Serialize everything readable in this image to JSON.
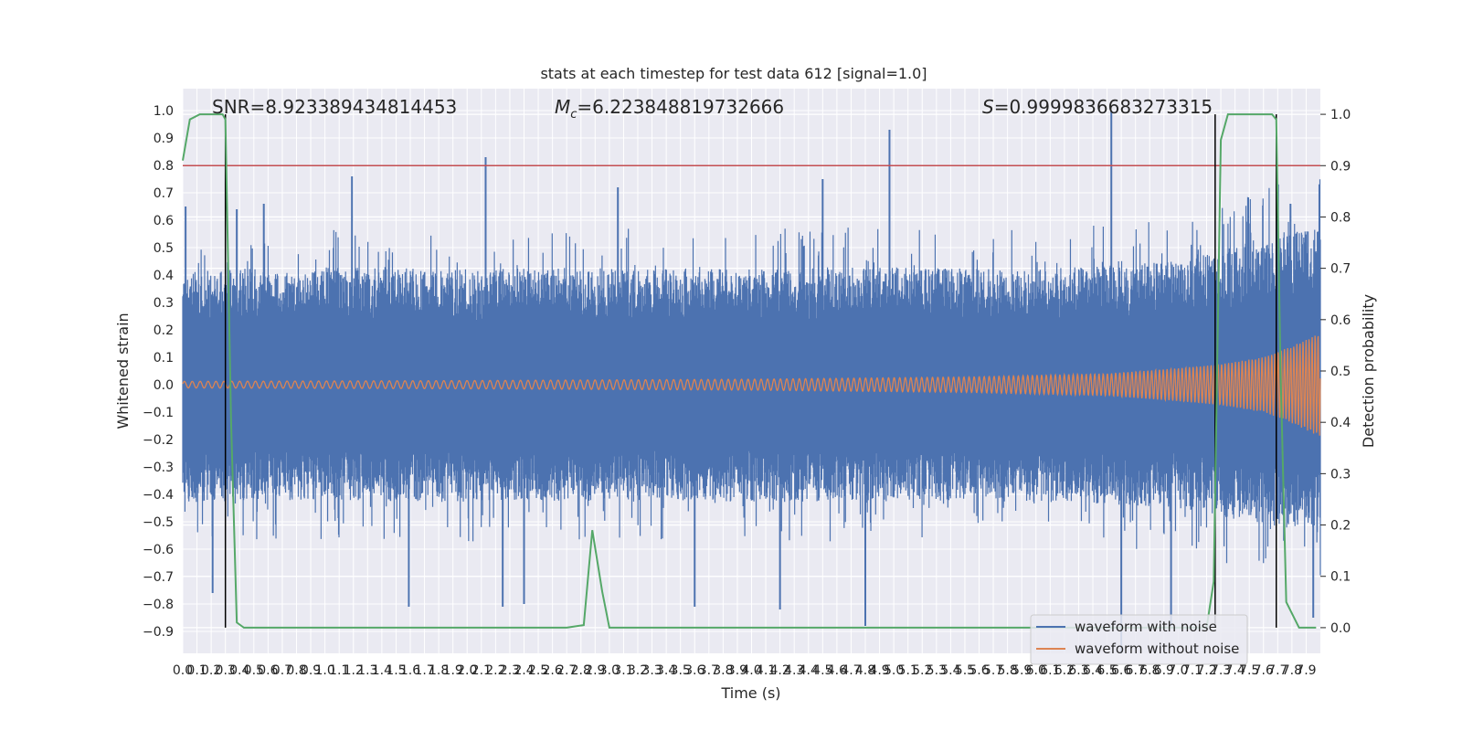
{
  "chart_data": {
    "type": "line",
    "title": "stats at each timestep for test data 612 [signal=1.0]",
    "xlabel": "Time (s)",
    "ylabel_left": "Whitened strain",
    "ylabel_right": "Detection probability",
    "xlim": [
      0.0,
      8.0
    ],
    "ylim_left": [
      -0.98,
      1.08
    ],
    "ylim_right": [
      -0.05,
      1.05
    ],
    "grid": true,
    "legend_position": "lower-right",
    "annotations": {
      "snr": "SNR=8.923389434814453",
      "mc_prefix": "M",
      "mc_sub": "c",
      "mc_value": "=6.223848819732666",
      "s_prefix": "S",
      "s_value": "=0.9999836683273315"
    },
    "x_ticks": [
      "0.0",
      "0.1",
      "0.2",
      "0.3",
      "0.4",
      "0.5",
      "0.6",
      "0.7",
      "0.8",
      "0.9",
      "1.0",
      "1.1",
      "1.2",
      "1.3",
      "1.4",
      "1.5",
      "1.6",
      "1.7",
      "1.8",
      "1.9",
      "2.0",
      "2.1",
      "2.2",
      "2.3",
      "2.4",
      "2.5",
      "2.6",
      "2.7",
      "2.8",
      "2.9",
      "3.0",
      "3.1",
      "3.2",
      "3.3",
      "3.4",
      "3.5",
      "3.6",
      "3.7",
      "3.8",
      "3.9",
      "4.0",
      "4.1",
      "4.2",
      "4.3",
      "4.4",
      "4.5",
      "4.6",
      "4.7",
      "4.8",
      "4.9",
      "5.0",
      "5.1",
      "5.2",
      "5.3",
      "5.4",
      "5.5",
      "5.6",
      "5.7",
      "5.8",
      "5.9",
      "6.0",
      "6.1",
      "6.2",
      "6.3",
      "6.4",
      "6.5",
      "6.6",
      "6.7",
      "6.8",
      "6.9",
      "7.0",
      "7.1",
      "7.2",
      "7.3",
      "7.4",
      "7.5",
      "7.6",
      "7.7",
      "7.8",
      "7.9"
    ],
    "y_ticks_left": [
      "1.0",
      "0.9",
      "0.8",
      "0.7",
      "0.6",
      "0.5",
      "0.4",
      "0.3",
      "0.2",
      "0.1",
      "0.0",
      "−0.1",
      "−0.2",
      "−0.3",
      "−0.4",
      "−0.5",
      "−0.6",
      "−0.7",
      "−0.8",
      "−0.9"
    ],
    "y_tick_values_left": [
      1.0,
      0.9,
      0.8,
      0.7,
      0.6,
      0.5,
      0.4,
      0.3,
      0.2,
      0.1,
      0.0,
      -0.1,
      -0.2,
      -0.3,
      -0.4,
      -0.5,
      -0.6,
      -0.7,
      -0.8,
      -0.9
    ],
    "y_ticks_right": [
      "1.0",
      "0.9",
      "0.8",
      "0.7",
      "0.6",
      "0.5",
      "0.4",
      "0.3",
      "0.2",
      "0.1",
      "0.0"
    ],
    "y_tick_values_right": [
      1.0,
      0.9,
      0.8,
      0.7,
      0.6,
      0.5,
      0.4,
      0.3,
      0.2,
      0.1,
      0.0
    ],
    "threshold_line": {
      "axis": "right",
      "value": 0.9,
      "color": "#c44e52"
    },
    "vertical_lines": [
      0.3,
      7.26,
      7.69
    ],
    "series": [
      {
        "name": "waveform with noise",
        "color": "#4c72b0",
        "description_envelope": {
          "x": [
            0.0,
            1.0,
            2.0,
            3.0,
            4.0,
            5.0,
            6.0,
            7.0,
            7.5,
            8.0
          ],
          "upper_typical": [
            0.42,
            0.43,
            0.42,
            0.43,
            0.42,
            0.43,
            0.42,
            0.45,
            0.52,
            0.6
          ],
          "lower_typical": [
            -0.43,
            -0.42,
            -0.43,
            -0.42,
            -0.43,
            -0.42,
            -0.43,
            -0.45,
            -0.5,
            -0.55
          ]
        },
        "spikes": [
          {
            "x": 0.02,
            "y": 0.65
          },
          {
            "x": 0.38,
            "y": 0.64
          },
          {
            "x": 0.57,
            "y": 0.66
          },
          {
            "x": 1.19,
            "y": 0.76
          },
          {
            "x": 2.13,
            "y": 0.83
          },
          {
            "x": 3.06,
            "y": 0.72
          },
          {
            "x": 4.5,
            "y": 0.75
          },
          {
            "x": 4.97,
            "y": 0.93
          },
          {
            "x": 6.53,
            "y": 1.0
          },
          {
            "x": 7.79,
            "y": 0.66
          },
          {
            "x": 0.21,
            "y": -0.76
          },
          {
            "x": 1.59,
            "y": -0.81
          },
          {
            "x": 2.25,
            "y": -0.81
          },
          {
            "x": 2.4,
            "y": -0.8
          },
          {
            "x": 3.6,
            "y": -0.81
          },
          {
            "x": 4.2,
            "y": -0.82
          },
          {
            "x": 4.8,
            "y": -0.88
          },
          {
            "x": 6.6,
            "y": -0.98
          },
          {
            "x": 6.95,
            "y": -0.88
          },
          {
            "x": 7.95,
            "y": -0.85
          }
        ]
      },
      {
        "name": "waveform without noise",
        "color": "#dd8452",
        "envelope": {
          "x": [
            0.0,
            2.0,
            4.0,
            5.5,
            6.5,
            7.0,
            7.3,
            7.6,
            7.8,
            8.0
          ],
          "amplitude": [
            0.012,
            0.015,
            0.02,
            0.028,
            0.04,
            0.06,
            0.075,
            0.1,
            0.14,
            0.19
          ]
        }
      },
      {
        "name": "",
        "axis": "right",
        "color": "#55a868",
        "x": [
          0.0,
          0.05,
          0.12,
          0.2,
          0.28,
          0.3,
          0.34,
          0.38,
          0.43,
          2.7,
          2.82,
          2.88,
          2.95,
          3.0,
          7.2,
          7.25,
          7.3,
          7.35,
          7.4,
          7.66,
          7.69,
          7.72,
          7.76,
          7.85,
          7.97
        ],
        "y": [
          0.91,
          0.99,
          1.0,
          1.0,
          1.0,
          0.99,
          0.4,
          0.01,
          0.0,
          0.0,
          0.005,
          0.19,
          0.07,
          0.0,
          0.0,
          0.09,
          0.95,
          1.0,
          1.0,
          1.0,
          0.99,
          0.5,
          0.05,
          0.0,
          0.0
        ]
      }
    ]
  }
}
